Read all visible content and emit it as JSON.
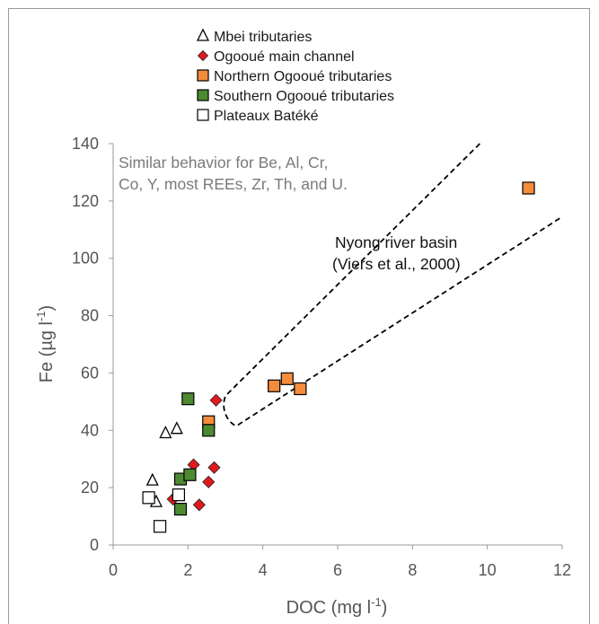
{
  "chart_data": {
    "type": "scatter",
    "xlabel": "DOC (mg l",
    "xlabel_sup": "-1",
    "xlabel_end": ")",
    "ylabel": "Fe (µg l",
    "ylabel_sup": "-1",
    "ylabel_end": ")",
    "xlim": [
      0,
      12
    ],
    "ylim": [
      0,
      140
    ],
    "xticks": [
      "0",
      "2",
      "4",
      "6",
      "8",
      "10",
      "12"
    ],
    "yticks": [
      "0",
      "20",
      "40",
      "60",
      "80",
      "100",
      "120",
      "140"
    ],
    "grid": false,
    "legend_position": "top-center",
    "annotation_lines": [
      "Similar behavior for Be, Al, Cr,",
      "Co, Y, most REEs, Zr, Th, and U."
    ],
    "region_label_lines": [
      "Nyong river basin",
      "(Viers et al., 2000)"
    ],
    "series": [
      {
        "name": "Mbei tributaries",
        "marker": "triangle-open",
        "color": "#000000",
        "points": [
          [
            1.05,
            22.5
          ],
          [
            1.15,
            15
          ],
          [
            1.4,
            39
          ],
          [
            1.7,
            40.5
          ]
        ]
      },
      {
        "name": "Ogooué main channel",
        "marker": "diamond",
        "color": "#e0191e",
        "points": [
          [
            1.6,
            16
          ],
          [
            2.15,
            28
          ],
          [
            2.3,
            14
          ],
          [
            2.55,
            22
          ],
          [
            2.7,
            27
          ],
          [
            2.75,
            50.5
          ]
        ]
      },
      {
        "name": "Northern Ogooué tributaries",
        "marker": "square",
        "color": "#f58c3c",
        "points": [
          [
            2.55,
            43
          ],
          [
            4.3,
            55.5
          ],
          [
            4.65,
            58
          ],
          [
            5.0,
            54.5
          ],
          [
            11.1,
            124.5
          ]
        ]
      },
      {
        "name": "Southern Ogooué tributaries",
        "marker": "square",
        "color": "#4c8a32",
        "points": [
          [
            1.8,
            23
          ],
          [
            1.8,
            12.5
          ],
          [
            2.0,
            51
          ],
          [
            2.05,
            24.5
          ],
          [
            2.55,
            40
          ]
        ]
      },
      {
        "name": "Plateaux Batéké",
        "marker": "square-open",
        "color": "#000000",
        "points": [
          [
            0.95,
            16.5
          ],
          [
            1.25,
            6.5
          ],
          [
            1.75,
            17.5
          ]
        ]
      }
    ],
    "region_boundary": [
      [
        9.8,
        140
      ],
      [
        3.0,
        52
      ],
      [
        3.35,
        42
      ],
      [
        12.0,
        114.5
      ]
    ]
  }
}
